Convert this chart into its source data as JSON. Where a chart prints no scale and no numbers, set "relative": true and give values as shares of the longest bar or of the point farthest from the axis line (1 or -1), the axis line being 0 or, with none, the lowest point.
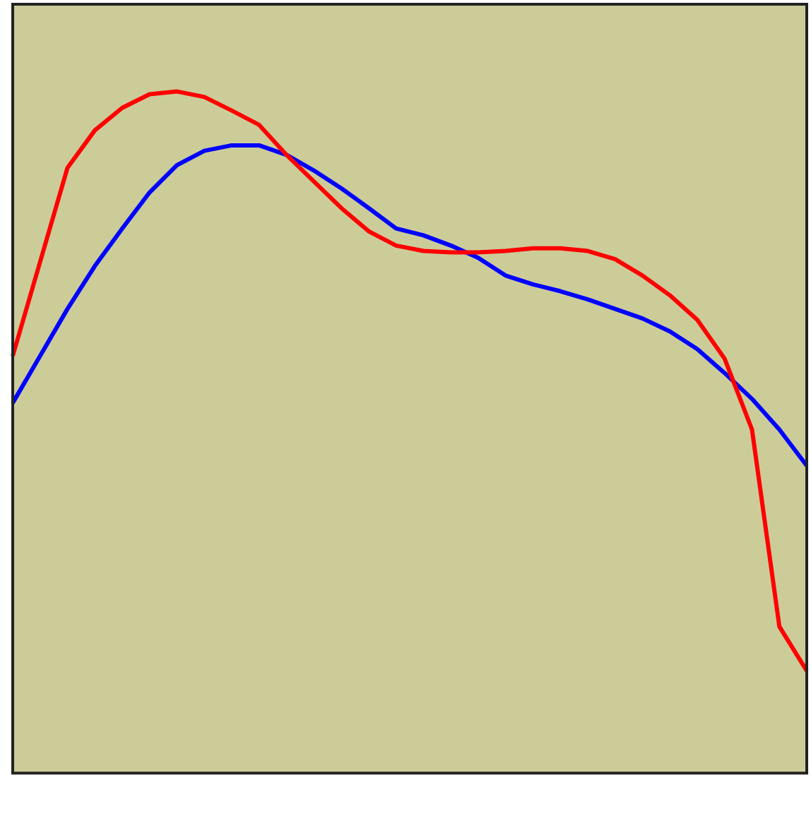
{
  "chart_data": {
    "type": "line",
    "relative": true,
    "grid": false,
    "legend": false,
    "marker": "none",
    "line_style": "solid",
    "categories": [
      null,
      null,
      null,
      null,
      null,
      null,
      null,
      null,
      null,
      null,
      null,
      null,
      null,
      null,
      null,
      null,
      null,
      null,
      null,
      null,
      null,
      null,
      null,
      null,
      null,
      null,
      null,
      null,
      null,
      null
    ],
    "series": [
      {
        "color": "#ff0000",
        "values": [
          0.612,
          0.75,
          0.888,
          0.943,
          0.976,
          0.996,
          1,
          0.992,
          0.972,
          0.951,
          0.907,
          0.868,
          0.829,
          0.795,
          0.774,
          0.766,
          0.764,
          0.764,
          0.766,
          0.77,
          0.77,
          0.766,
          0.754,
          0.73,
          0.701,
          0.665,
          0.608,
          0.504,
          0.215,
          0.15
        ]
      },
      {
        "color": "#0000ff",
        "values": [
          0.543,
          0.612,
          0.681,
          0.744,
          0.799,
          0.852,
          0.892,
          0.913,
          0.921,
          0.921,
          0.907,
          0.884,
          0.858,
          0.829,
          0.799,
          0.789,
          0.774,
          0.756,
          0.73,
          0.717,
          0.707,
          0.695,
          0.681,
          0.667,
          0.648,
          0.622,
          0.587,
          0.549,
          0.504,
          0.451
        ]
      }
    ]
  }
}
